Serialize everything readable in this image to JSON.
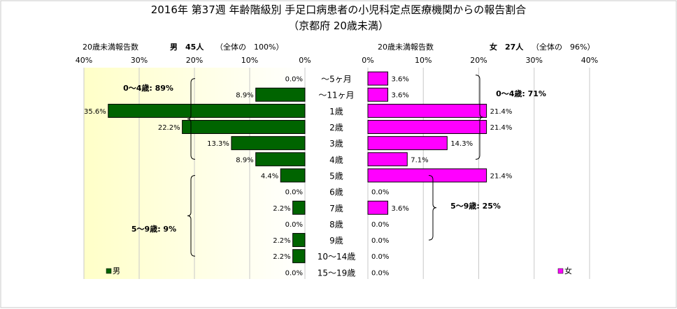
{
  "chart_data": {
    "type": "bar",
    "title": "2016年 第37週 年齢階級別 手足口病患者の小児科定点医療機関からの報告割合",
    "subtitle": "（京都府 20歳未満）",
    "categories": [
      "～5ヶ月",
      "～11ヶ月",
      "1歳",
      "2歳",
      "3歳",
      "4歳",
      "5歳",
      "6歳",
      "7歳",
      "8歳",
      "9歳",
      "10～14歳",
      "15～19歳"
    ],
    "xlim": [
      0,
      40
    ],
    "xticks": [
      "0%",
      "10%",
      "20%",
      "30%",
      "40%"
    ],
    "axis_label": "20歳未満報告数",
    "male": {
      "name": "男",
      "count_label": "男　45人",
      "share_label": "（全体の　100%）",
      "color": "#006400",
      "values": [
        0.0,
        8.9,
        35.6,
        22.2,
        13.3,
        8.9,
        4.4,
        0.0,
        2.2,
        0.0,
        2.2,
        2.2,
        0.0
      ],
      "labels": [
        "0.0%",
        "8.9%",
        "35.6%",
        "22.2%",
        "13.3%",
        "8.9%",
        "4.4%",
        "0.0%",
        "2.2%",
        "0.0%",
        "2.2%",
        "2.2%",
        "0.0%"
      ],
      "groups": [
        {
          "label": "0～4歳: 89%"
        },
        {
          "label": "5～9歳: 9%"
        }
      ]
    },
    "female": {
      "name": "女",
      "count_label": "女　27人",
      "share_label": "（全体の　96%）",
      "color": "#ff00ff",
      "values": [
        3.6,
        3.6,
        21.4,
        21.4,
        14.3,
        7.1,
        21.4,
        0.0,
        3.6,
        0.0,
        0.0,
        0.0,
        0.0
      ],
      "labels": [
        "3.6%",
        "3.6%",
        "21.4%",
        "21.4%",
        "14.3%",
        "7.1%",
        "21.4%",
        "0.0%",
        "3.6%",
        "0.0%",
        "0.0%",
        "0.0%",
        "0.0%"
      ],
      "groups": [
        {
          "label": "0～4歳: 71%"
        },
        {
          "label": "5～9歳: 25%"
        }
      ]
    },
    "grid": true
  }
}
